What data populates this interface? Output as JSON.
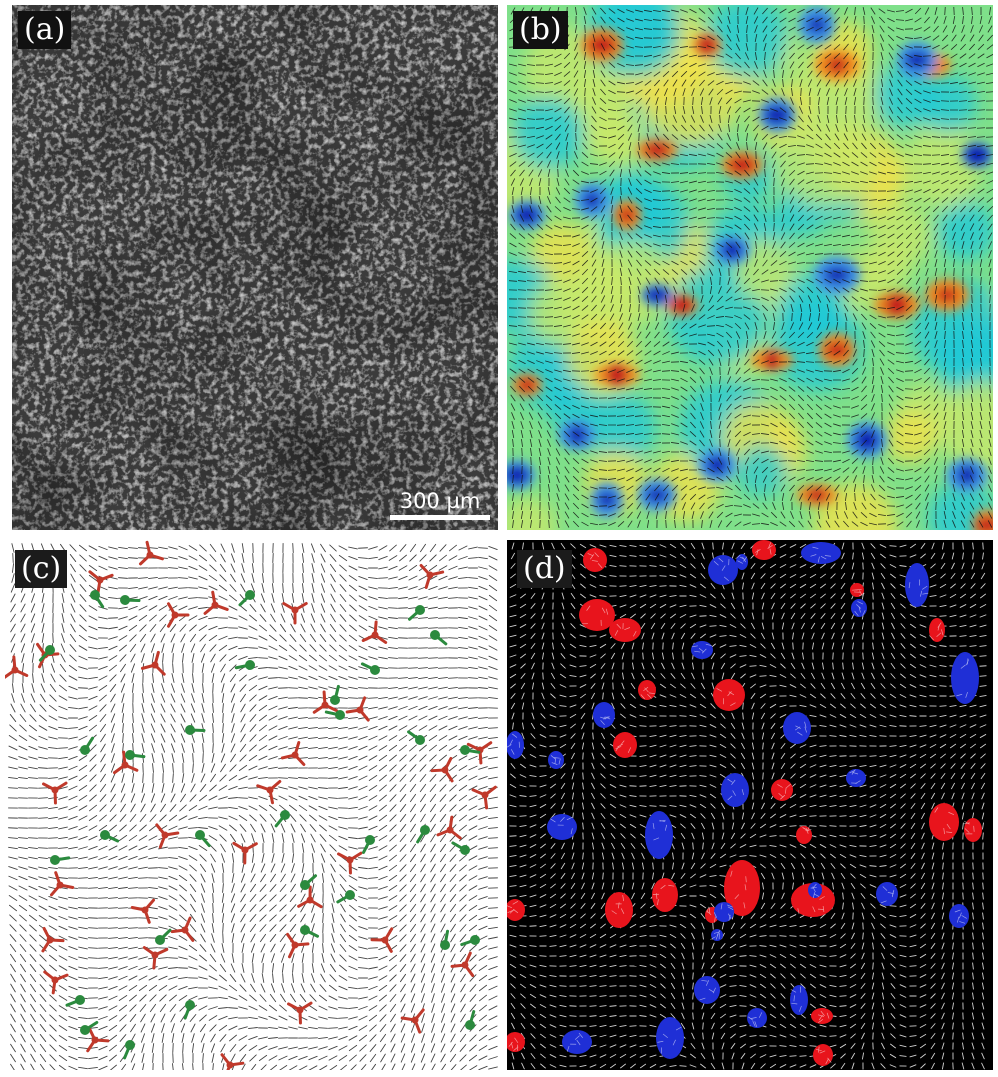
{
  "panels": {
    "a": {
      "label": "(a)",
      "scale_bar": "300 µm"
    },
    "b": {
      "label": "(b)"
    },
    "c": {
      "label": "(c)"
    },
    "d": {
      "label": "(d)"
    }
  },
  "colors": {
    "defect_plus_half": "#2b8a3e",
    "defect_minus_half": "#c0392b",
    "vortex_positive": "#e8141c",
    "vortex_negative": "#1f2fd6"
  }
}
